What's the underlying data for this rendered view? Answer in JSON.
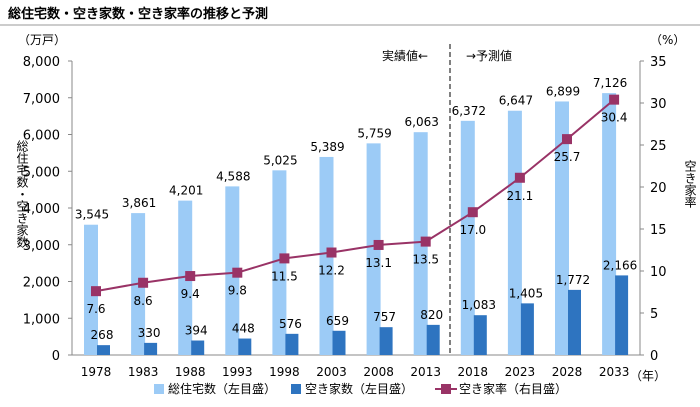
{
  "chart_data": {
    "type": "bar",
    "title": "総住宅数・空き家数・空き家率の推移と予測",
    "categories": [
      "1978",
      "1983",
      "1988",
      "1993",
      "1998",
      "2003",
      "2008",
      "2013",
      "2018",
      "2023",
      "2028",
      "2033"
    ],
    "xlabel": "（年）",
    "ylabel_left": "総住宅数・空き家数",
    "ylabel_left_unit": "（万戸）",
    "ylabel_right": "空き家率",
    "ylabel_right_unit": "（%）",
    "ylim_left": [
      0,
      8000
    ],
    "ylim_right": [
      0,
      35
    ],
    "yticks_left": [
      "0",
      "1,000",
      "2,000",
      "3,000",
      "4,000",
      "5,000",
      "6,000",
      "7,000",
      "8,000"
    ],
    "yticks_right": [
      "0",
      "5",
      "10",
      "15",
      "20",
      "25",
      "30",
      "35"
    ],
    "grid": false,
    "legend_placement": "bottom",
    "annotations": {
      "actual": "実績値←",
      "forecast": "→予測値"
    },
    "series": [
      {
        "name": "総住宅数（左目盛）",
        "type": "bar",
        "axis": "left",
        "color": "#9ccbf6",
        "values": [
          3545,
          3861,
          4201,
          4588,
          5025,
          5389,
          5759,
          6063,
          6372,
          6647,
          6899,
          7126
        ],
        "labels": [
          "3,545",
          "3,861",
          "4,201",
          "4,588",
          "5,025",
          "5,389",
          "5,759",
          "6,063",
          "6,372",
          "6,647",
          "6,899",
          "7,126"
        ]
      },
      {
        "name": "空き家数（左目盛）",
        "type": "bar",
        "axis": "left",
        "color": "#2e74c0",
        "values": [
          268,
          330,
          394,
          448,
          576,
          659,
          757,
          820,
          1083,
          1405,
          1772,
          2166
        ],
        "labels": [
          "268",
          "330",
          "394",
          "448",
          "576",
          "659",
          "757",
          "820",
          "1,083",
          "1,405",
          "1,772",
          "2,166"
        ]
      },
      {
        "name": "空き家率（右目盛）",
        "type": "line",
        "axis": "right",
        "color": "#993366",
        "values": [
          7.6,
          8.6,
          9.4,
          9.8,
          11.5,
          12.2,
          13.1,
          13.5,
          17.0,
          21.1,
          25.7,
          30.4
        ],
        "labels": [
          "7.6",
          "8.6",
          "9.4",
          "9.8",
          "11.5",
          "12.2",
          "13.1",
          "13.5",
          "17.0",
          "21.1",
          "25.7",
          "30.4"
        ]
      }
    ]
  }
}
